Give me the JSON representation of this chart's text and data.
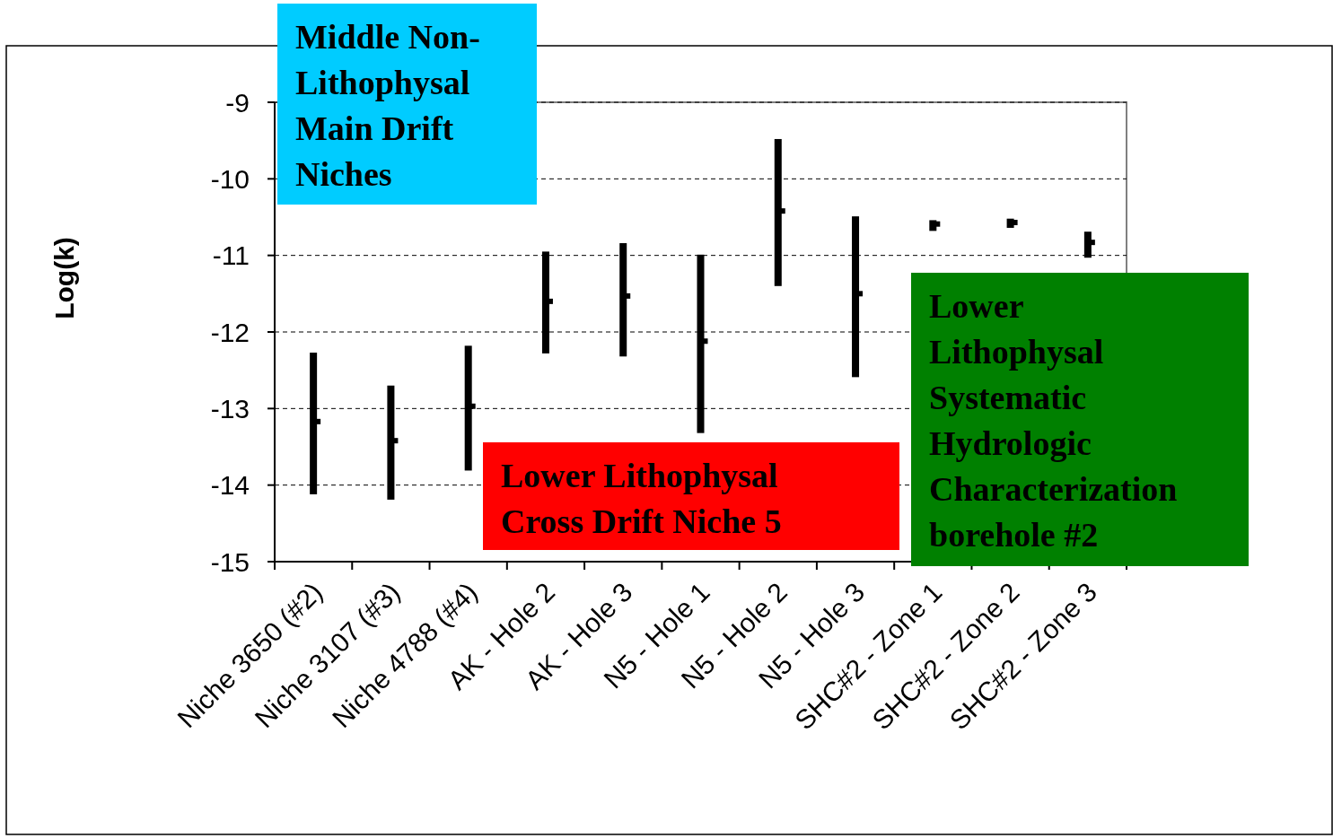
{
  "chart_data": {
    "type": "bar",
    "ylabel": "Log(k)",
    "categories": [
      "Niche 3650 (#2)",
      "Niche 3107 (#3)",
      "Niche 4788 (#4)",
      "AK - Hole 2",
      "AK - Hole 3",
      "N5 - Hole 1",
      "N5 - Hole 2",
      "N5 - Hole 3",
      "SHC#2 - Zone 1",
      "SHC#2 - Zone 2",
      "SHC#2 - Zone 3"
    ],
    "series": [
      {
        "color": "#000000",
        "base": [
          -14.12,
          -14.19,
          -13.81,
          -12.28,
          -12.32,
          -13.32,
          -11.4,
          -12.59,
          -10.68,
          -10.64,
          -11.03
        ],
        "values": [
          1.85,
          1.49,
          1.63,
          1.33,
          1.48,
          2.33,
          1.92,
          2.1,
          0.14,
          0.12,
          0.34
        ]
      },
      {
        "type": "scatter",
        "marker": "square",
        "color": "#000000",
        "x": [
          "Niche 3650 (#2)",
          "Niche 3107 (#3)",
          "Niche 4788 (#4)",
          "AK - Hole 2",
          "AK - Hole 3",
          "N5 - Hole 1",
          "N5 - Hole 2",
          "N5 - Hole 3",
          "SHC#2 - Zone 1",
          "SHC#2 - Zone 2",
          "SHC#2 - Zone 3"
        ],
        "values": [
          -13.17,
          -13.42,
          -12.97,
          -11.6,
          -11.53,
          -12.12,
          -10.42,
          -11.5,
          -10.59,
          -10.57,
          -10.83
        ]
      }
    ],
    "ylim": [
      -15,
      -9
    ],
    "yticks": [
      -15,
      -14,
      -13,
      -12,
      -11,
      -10,
      -9
    ],
    "grid": "y",
    "annotations": [
      "Middle Non-Lithophysal Main Drift Niches",
      "Lower Lithophysal Cross Drift Niche 5",
      "Lower Lithophysal Systematic Hydrologic Characterization borehole #2"
    ]
  }
}
